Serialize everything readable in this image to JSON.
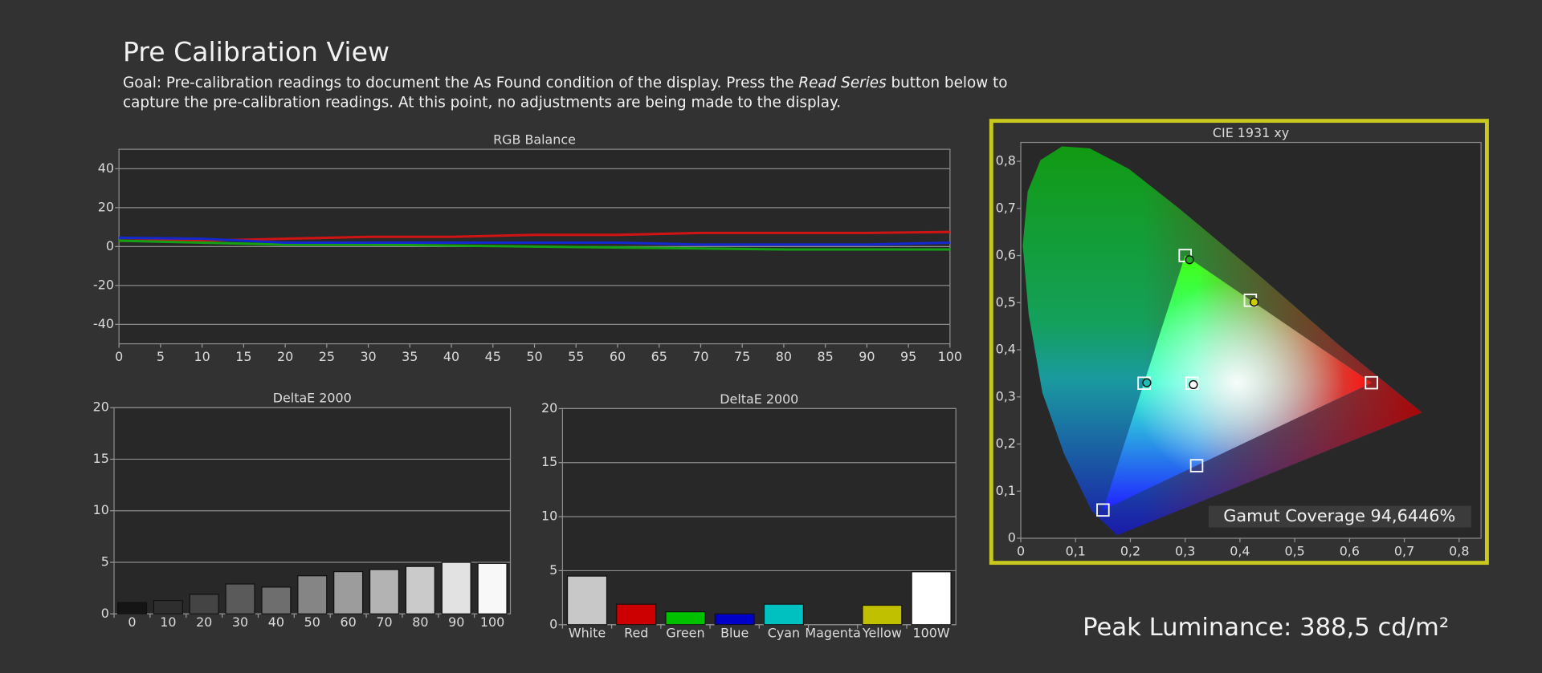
{
  "header": {
    "title": "Pre Calibration View",
    "goal_line1_start": "Goal: Pre-calibration readings to document the As Found condition of the display. Press the ",
    "goal_emphasis": "Read Series",
    "goal_line1_end": " button below to",
    "goal_line2": "capture the pre-calibration readings. At this point, no adjustments are being made to the display."
  },
  "chart_data": [
    {
      "type": "line",
      "title": "RGB Balance",
      "x": [
        0,
        10,
        20,
        30,
        40,
        50,
        60,
        70,
        80,
        90,
        100
      ],
      "series": [
        {
          "color": "#d01414",
          "values": [
            3,
            3,
            4,
            5,
            5,
            6,
            6,
            7,
            7,
            7,
            7.5
          ]
        },
        {
          "color": "#14a014",
          "values": [
            3,
            2,
            1,
            1,
            0.5,
            0,
            -0.5,
            -1,
            -1.5,
            -1.5,
            -1.5
          ]
        },
        {
          "color": "#1428d0",
          "values": [
            4.5,
            4,
            2,
            2,
            2,
            2,
            2,
            1,
            1,
            1,
            2
          ]
        }
      ],
      "xlim": [
        0,
        100
      ],
      "xticks": [
        0,
        5,
        10,
        15,
        20,
        25,
        30,
        35,
        40,
        45,
        50,
        55,
        60,
        65,
        70,
        75,
        80,
        85,
        90,
        95,
        100
      ],
      "ylim": [
        -50,
        50
      ],
      "yticks": [
        -40,
        -20,
        0,
        20,
        40
      ],
      "grid": true
    },
    {
      "type": "bar",
      "title": "DeltaE 2000",
      "categories": [
        "0",
        "10",
        "20",
        "30",
        "40",
        "50",
        "60",
        "70",
        "80",
        "90",
        "100"
      ],
      "values": [
        1.1,
        1.3,
        1.9,
        2.9,
        2.6,
        3.7,
        4.1,
        4.3,
        4.6,
        5.0,
        4.9
      ],
      "colors": [
        "#151515",
        "#2e2e2e",
        "#444444",
        "#5a5a5a",
        "#6e6e6e",
        "#858585",
        "#9c9c9c",
        "#b3b3b3",
        "#cacaca",
        "#e2e2e2",
        "#f8f8f8"
      ],
      "ylim": [
        0,
        20
      ],
      "yticks": [
        0,
        5,
        10,
        15,
        20
      ],
      "grid": true
    },
    {
      "type": "bar",
      "title": "DeltaE 2000",
      "categories": [
        "White",
        "Red",
        "Green",
        "Blue",
        "Cyan",
        "Magenta",
        "Yellow",
        "100W"
      ],
      "values": [
        4.5,
        1.9,
        1.2,
        1.0,
        1.9,
        null,
        1.8,
        4.9
      ],
      "colors": [
        "#c8c8c8",
        "#cc0000",
        "#00c000",
        "#0000c8",
        "#00c0c0",
        "#c000c0",
        "#c0c000",
        "#ffffff"
      ],
      "ylim": [
        0,
        20
      ],
      "yticks": [
        0,
        5,
        10,
        15,
        20
      ],
      "grid": true
    },
    {
      "type": "scatter",
      "title": "CIE 1931 xy",
      "series": [
        {
          "marker": "square",
          "color": "#ffffff",
          "x": [
            0.64,
            0.3,
            0.15,
            0.419,
            0.225,
            0.321,
            0.3127
          ],
          "y": [
            0.33,
            0.6,
            0.06,
            0.505,
            0.329,
            0.154,
            0.329
          ]
        },
        {
          "marker": "circle",
          "colors": [
            "#22aa22",
            "#cccc00",
            "#22bbbb",
            "#ffffff"
          ],
          "x": [
            0.308,
            0.426,
            0.23,
            0.315
          ],
          "y": [
            0.591,
            0.501,
            0.33,
            0.326
          ]
        }
      ],
      "xlim": [
        0,
        0.84
      ],
      "xticks": [
        0,
        {
          "value": 0.1,
          "label": "0,1"
        },
        {
          "value": 0.2,
          "label": "0,2"
        },
        {
          "value": 0.3,
          "label": "0,3"
        },
        {
          "value": 0.4,
          "label": "0,4"
        },
        {
          "value": 0.5,
          "label": "0,5"
        },
        {
          "value": 0.6,
          "label": "0,6"
        },
        {
          "value": 0.7,
          "label": "0,7"
        },
        {
          "value": 0.8,
          "label": "0,8"
        }
      ],
      "ylim": [
        0,
        0.84
      ],
      "yticks": [
        0,
        {
          "value": 0.1,
          "label": "0,1"
        },
        {
          "value": 0.2,
          "label": "0,2"
        },
        {
          "value": 0.3,
          "label": "0,3"
        },
        {
          "value": 0.4,
          "label": "0,4"
        },
        {
          "value": 0.5,
          "label": "0,5"
        },
        {
          "value": 0.6,
          "label": "0,6"
        },
        {
          "value": 0.7,
          "label": "0,7"
        },
        {
          "value": 0.8,
          "label": "0,8"
        }
      ],
      "grid": false,
      "annotation": "Gamut Coverage 94,6446%"
    }
  ],
  "peak_luminance": "Peak Luminance: 388,5 cd/m²"
}
